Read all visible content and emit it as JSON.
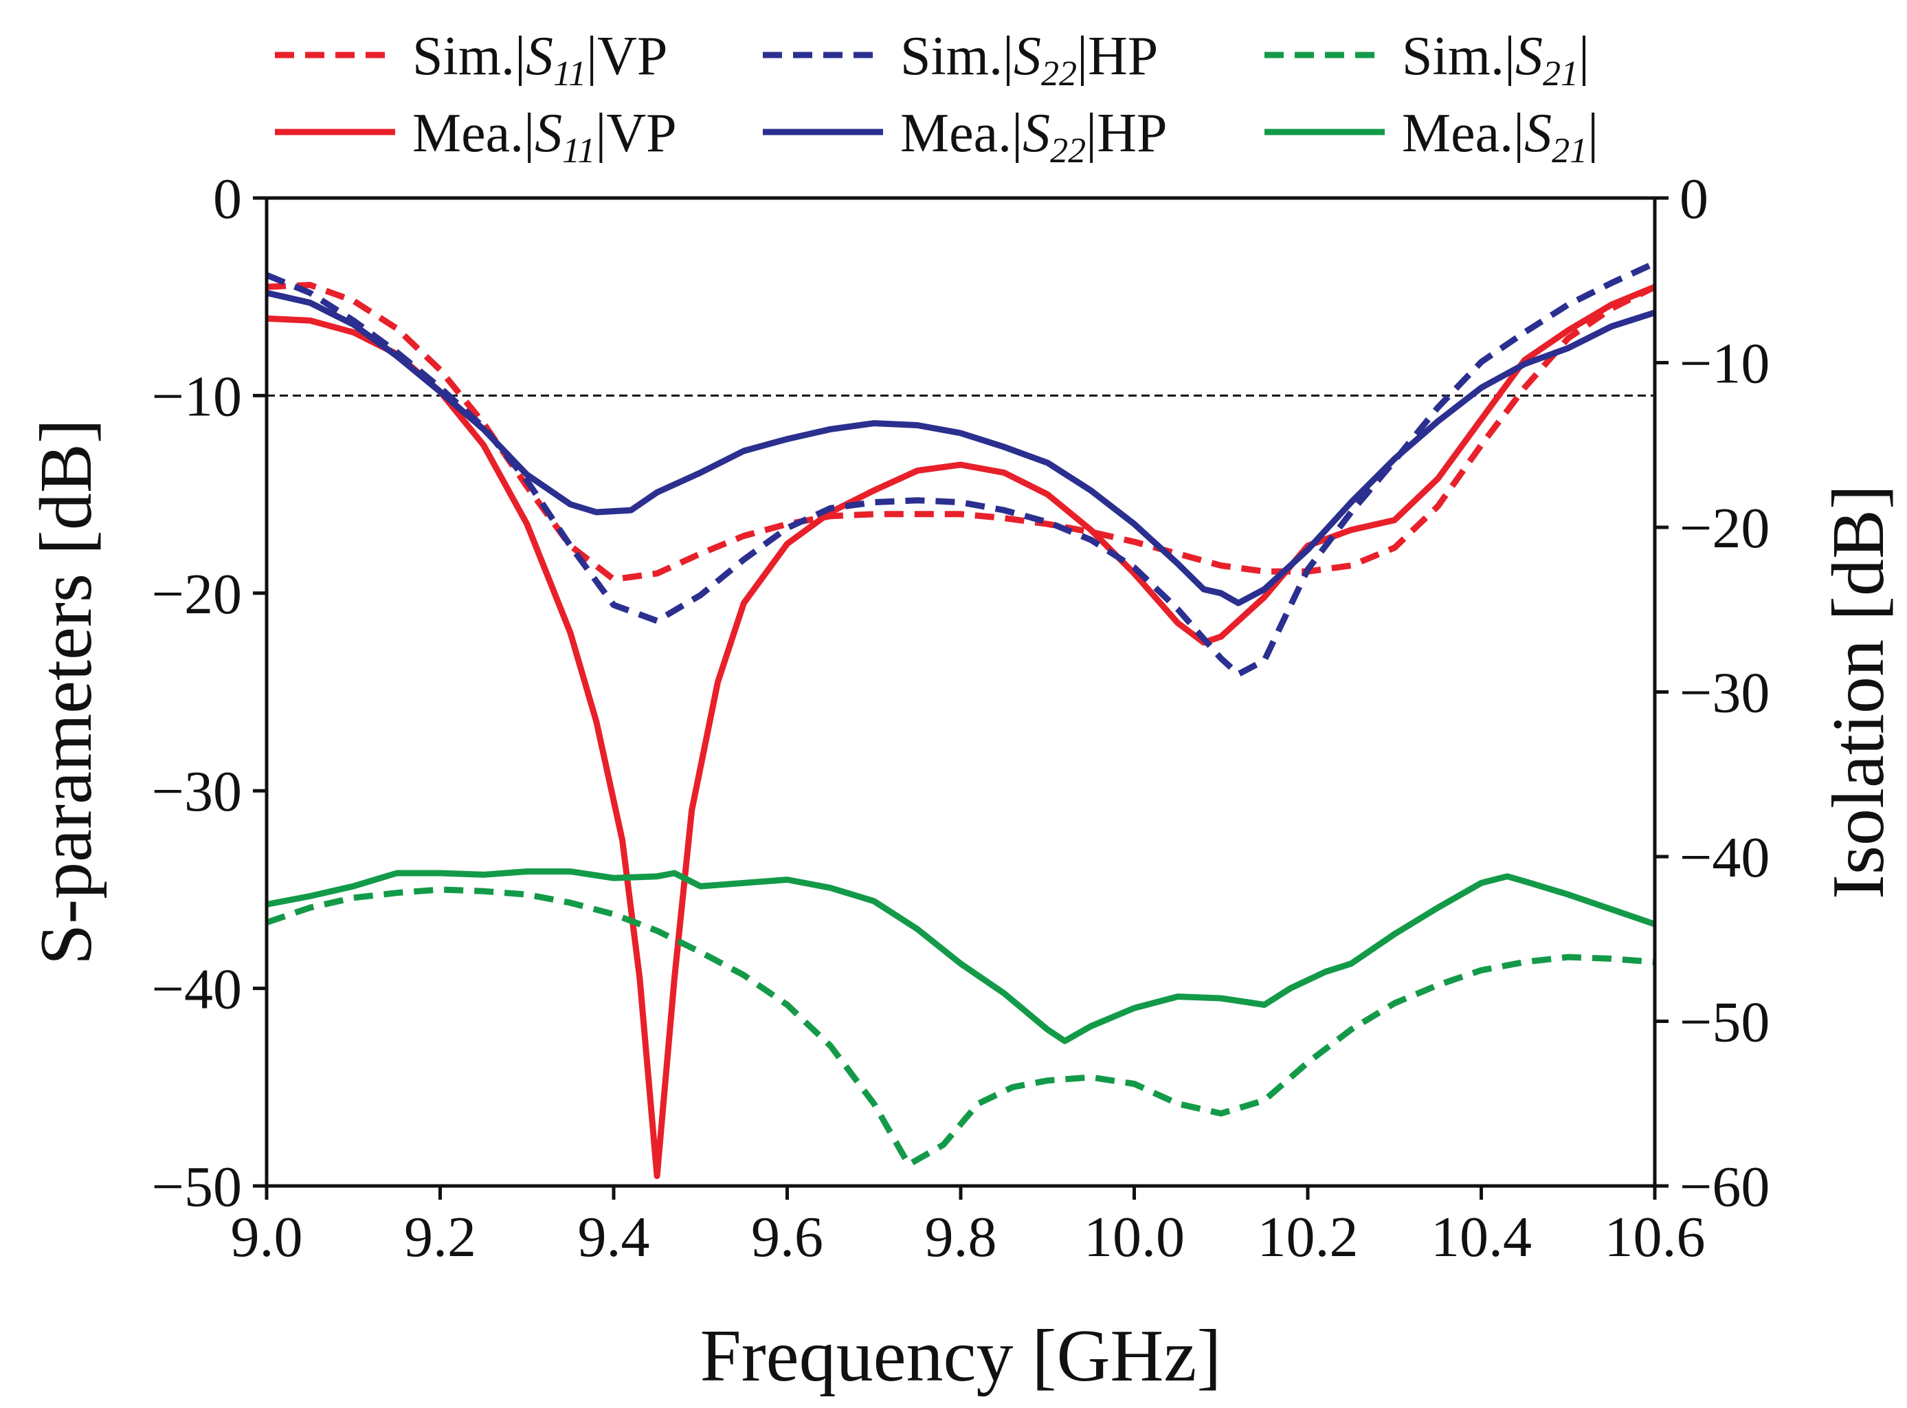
{
  "chart_data": {
    "type": "line",
    "xlabel": "Frequency [GHz]",
    "ylabel_left": "S-parameters [dB]",
    "ylabel_right": "Isolation [dB]",
    "xlim": [
      9.0,
      10.6
    ],
    "ylim_left": [
      -50,
      0
    ],
    "ylim_right": [
      -60,
      0
    ],
    "x_ticks": [
      "9.0",
      "9.2",
      "9.4",
      "9.6",
      "9.8",
      "10.0",
      "10.2",
      "10.4",
      "10.6"
    ],
    "y_left_ticks": [
      "0",
      "−10",
      "−20",
      "−30",
      "−40",
      "−50"
    ],
    "y_right_ticks": [
      "0",
      "−10",
      "−20",
      "−30",
      "−40",
      "−50",
      "−60"
    ],
    "reference_line": {
      "axis": "left",
      "value": -10,
      "style": "dashed"
    },
    "colors": {
      "red": "#e8202a",
      "blue": "#2b2f8f",
      "green": "#139a48"
    },
    "series": [
      {
        "name": "Sim.|S11|VP",
        "prefix": "Sim.",
        "sym": "S",
        "sub": "11",
        "suffix": "VP",
        "color": "red",
        "dash": true,
        "axis": "left",
        "x": [
          9.0,
          9.05,
          9.1,
          9.15,
          9.2,
          9.25,
          9.3,
          9.35,
          9.4,
          9.45,
          9.5,
          9.55,
          9.6,
          9.65,
          9.7,
          9.75,
          9.8,
          9.85,
          9.9,
          9.95,
          10.0,
          10.05,
          10.1,
          10.15,
          10.2,
          10.25,
          10.3,
          10.35,
          10.4,
          10.45,
          10.5,
          10.55,
          10.6
        ],
        "y": [
          -4.5,
          -4.4,
          -5.2,
          -6.6,
          -8.7,
          -11.4,
          -14.6,
          -17.6,
          -19.3,
          -19.0,
          -18.0,
          -17.1,
          -16.5,
          -16.1,
          -16.0,
          -16.0,
          -16.0,
          -16.2,
          -16.5,
          -16.9,
          -17.4,
          -18.0,
          -18.6,
          -18.9,
          -18.9,
          -18.6,
          -17.7,
          -15.6,
          -12.5,
          -9.6,
          -7.1,
          -5.6,
          -4.5
        ]
      },
      {
        "name": "Mea.|S11|VP",
        "prefix": "Mea.",
        "sym": "S",
        "sub": "11",
        "suffix": "VP",
        "color": "red",
        "dash": false,
        "axis": "left",
        "x": [
          9.0,
          9.05,
          9.1,
          9.15,
          9.2,
          9.25,
          9.3,
          9.35,
          9.38,
          9.41,
          9.43,
          9.45,
          9.47,
          9.49,
          9.52,
          9.55,
          9.6,
          9.65,
          9.7,
          9.75,
          9.8,
          9.85,
          9.9,
          9.95,
          10.0,
          10.05,
          10.08,
          10.1,
          10.15,
          10.2,
          10.25,
          10.3,
          10.35,
          10.4,
          10.45,
          10.5,
          10.55,
          10.6
        ],
        "y": [
          -6.1,
          -6.2,
          -6.8,
          -7.9,
          -9.8,
          -12.5,
          -16.5,
          -22.0,
          -26.5,
          -32.5,
          -39.5,
          -49.5,
          -39.5,
          -31.0,
          -24.5,
          -20.5,
          -17.5,
          -15.9,
          -14.8,
          -13.8,
          -13.5,
          -13.9,
          -15.0,
          -16.8,
          -19.0,
          -21.5,
          -22.5,
          -22.2,
          -20.2,
          -17.6,
          -16.8,
          -16.3,
          -14.2,
          -11.2,
          -8.2,
          -6.7,
          -5.4,
          -4.5
        ]
      },
      {
        "name": "Sim.|S22|HP",
        "prefix": "Sim.",
        "sym": "S",
        "sub": "22",
        "suffix": "HP",
        "color": "blue",
        "dash": true,
        "axis": "left",
        "x": [
          9.0,
          9.05,
          9.1,
          9.15,
          9.2,
          9.25,
          9.3,
          9.35,
          9.4,
          9.45,
          9.5,
          9.55,
          9.6,
          9.65,
          9.7,
          9.75,
          9.8,
          9.85,
          9.9,
          9.95,
          10.0,
          10.05,
          10.1,
          10.12,
          10.15,
          10.2,
          10.25,
          10.3,
          10.35,
          10.4,
          10.45,
          10.5,
          10.55,
          10.6
        ],
        "y": [
          -3.9,
          -4.8,
          -6.2,
          -7.8,
          -9.6,
          -11.6,
          -14.3,
          -17.6,
          -20.6,
          -21.4,
          -20.1,
          -18.3,
          -16.7,
          -15.7,
          -15.4,
          -15.3,
          -15.4,
          -15.8,
          -16.4,
          -17.3,
          -18.7,
          -20.8,
          -23.3,
          -24.1,
          -23.4,
          -18.8,
          -15.9,
          -13.3,
          -10.6,
          -8.3,
          -6.8,
          -5.4,
          -4.3,
          -3.3
        ]
      },
      {
        "name": "Mea.|S22|HP",
        "prefix": "Mea.",
        "sym": "S",
        "sub": "22",
        "suffix": "HP",
        "color": "blue",
        "dash": false,
        "axis": "left",
        "x": [
          9.0,
          9.05,
          9.1,
          9.15,
          9.2,
          9.25,
          9.3,
          9.35,
          9.38,
          9.42,
          9.45,
          9.5,
          9.55,
          9.6,
          9.65,
          9.7,
          9.75,
          9.8,
          9.85,
          9.9,
          9.95,
          10.0,
          10.05,
          10.08,
          10.1,
          10.12,
          10.15,
          10.2,
          10.25,
          10.3,
          10.35,
          10.4,
          10.45,
          10.5,
          10.55,
          10.6
        ],
        "y": [
          -4.8,
          -5.3,
          -6.4,
          -8.0,
          -9.8,
          -11.7,
          -14.0,
          -15.5,
          -15.9,
          -15.8,
          -14.9,
          -13.9,
          -12.8,
          -12.2,
          -11.7,
          -11.4,
          -11.5,
          -11.9,
          -12.6,
          -13.4,
          -14.8,
          -16.5,
          -18.5,
          -19.8,
          -20.0,
          -20.5,
          -19.8,
          -17.8,
          -15.4,
          -13.2,
          -11.3,
          -9.6,
          -8.4,
          -7.6,
          -6.5,
          -5.8
        ]
      },
      {
        "name": "Sim.|S21|",
        "prefix": "Sim.",
        "sym": "S",
        "sub": "21",
        "suffix": "",
        "color": "green",
        "dash": true,
        "axis": "right",
        "x": [
          9.0,
          9.05,
          9.1,
          9.15,
          9.2,
          9.25,
          9.3,
          9.35,
          9.4,
          9.45,
          9.5,
          9.55,
          9.6,
          9.65,
          9.7,
          9.74,
          9.78,
          9.82,
          9.86,
          9.9,
          9.95,
          10.0,
          10.05,
          10.1,
          10.15,
          10.2,
          10.25,
          10.3,
          10.35,
          10.4,
          10.45,
          10.5,
          10.55,
          10.6
        ],
        "y": [
          -44.0,
          -43.1,
          -42.5,
          -42.2,
          -42.0,
          -42.1,
          -42.3,
          -42.8,
          -43.5,
          -44.5,
          -45.8,
          -47.2,
          -49.0,
          -51.5,
          -55.0,
          -58.7,
          -57.5,
          -55.0,
          -54.0,
          -53.6,
          -53.4,
          -53.8,
          -55.0,
          -55.6,
          -54.8,
          -52.5,
          -50.5,
          -48.9,
          -47.8,
          -46.9,
          -46.4,
          -46.1,
          -46.2,
          -46.4
        ]
      },
      {
        "name": "Mea.|S21|",
        "prefix": "Mea.",
        "sym": "S",
        "sub": "21",
        "suffix": "",
        "color": "green",
        "dash": false,
        "axis": "right",
        "x": [
          9.0,
          9.05,
          9.1,
          9.15,
          9.2,
          9.25,
          9.3,
          9.35,
          9.4,
          9.45,
          9.47,
          9.5,
          9.55,
          9.6,
          9.65,
          9.7,
          9.75,
          9.8,
          9.85,
          9.9,
          9.92,
          9.95,
          10.0,
          10.05,
          10.1,
          10.15,
          10.18,
          10.22,
          10.25,
          10.3,
          10.35,
          10.4,
          10.43,
          10.45,
          10.5,
          10.55,
          10.6
        ],
        "y": [
          -42.9,
          -42.4,
          -41.8,
          -41.0,
          -41.0,
          -41.1,
          -40.9,
          -40.9,
          -41.3,
          -41.2,
          -41.0,
          -41.8,
          -41.6,
          -41.4,
          -41.9,
          -42.7,
          -44.4,
          -46.5,
          -48.3,
          -50.5,
          -51.2,
          -50.3,
          -49.2,
          -48.5,
          -48.6,
          -49.0,
          -48.0,
          -47.0,
          -46.5,
          -44.7,
          -43.1,
          -41.6,
          -41.2,
          -41.5,
          -42.3,
          -43.2,
          -44.1
        ]
      }
    ]
  }
}
